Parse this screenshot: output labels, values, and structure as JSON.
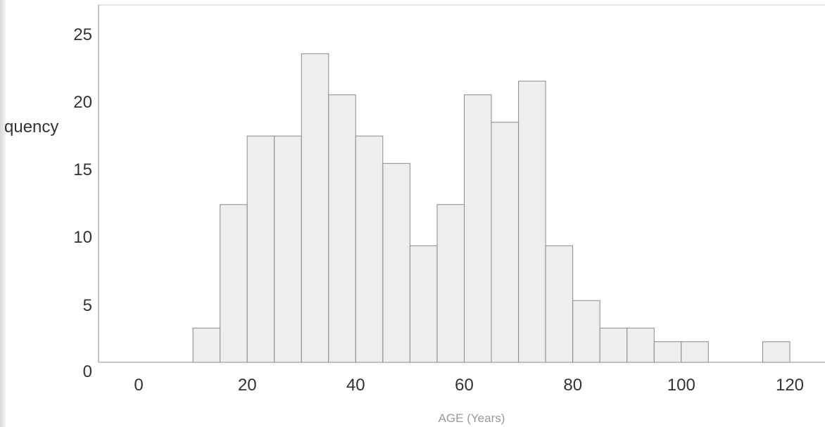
{
  "chart_data": {
    "type": "bar",
    "histogram": true,
    "bin_width": 5,
    "bin_starts": [
      10,
      15,
      20,
      25,
      30,
      35,
      40,
      45,
      50,
      55,
      60,
      65,
      70,
      75,
      80,
      85,
      90,
      95,
      100,
      105,
      110,
      115
    ],
    "values": [
      2,
      11,
      16,
      16,
      22,
      19,
      16,
      14,
      8,
      11,
      19,
      17,
      20,
      8,
      4,
      2,
      2,
      1,
      1,
      0,
      0,
      1
    ],
    "title": "",
    "xlabel": "AGE (Years)",
    "ylabel": "quency",
    "xlim": [
      -5,
      125
    ],
    "ylim": [
      0,
      26
    ],
    "x_ticks": [
      0,
      20,
      40,
      60,
      80,
      100,
      120
    ],
    "y_ticks": [
      0,
      5,
      10,
      15,
      20,
      25
    ],
    "grid": false,
    "legend": "none",
    "bar_color": "#eeeeee",
    "edge_color": "#8a8a8a"
  }
}
